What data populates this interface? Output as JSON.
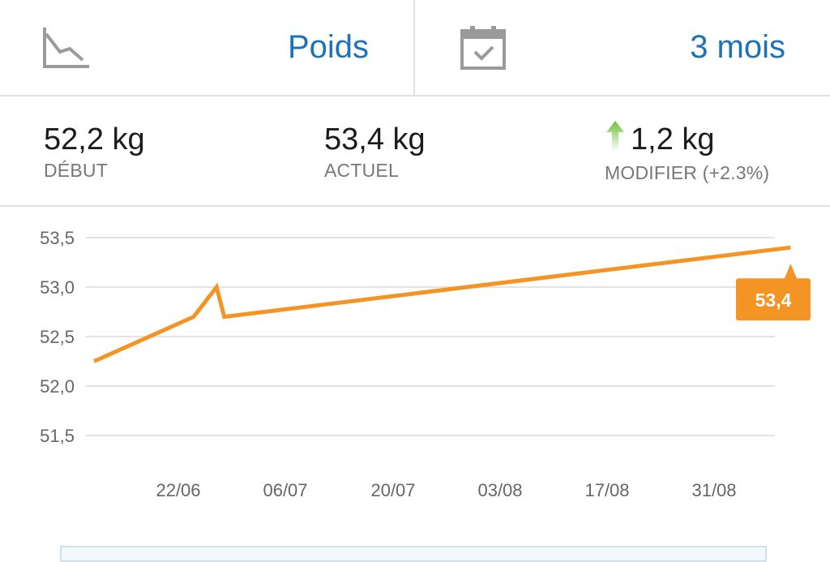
{
  "top_bar": {
    "metric_icon": "weight-trend-icon",
    "metric_label": "Poids",
    "period_icon": "calendar-check-icon",
    "period_label": "3 mois"
  },
  "stats": {
    "start": {
      "value": "52,2 kg",
      "label": "DÉBUT"
    },
    "current": {
      "value": "53,4 kg",
      "label": "ACTUEL"
    },
    "change": {
      "value": "1,2 kg",
      "label": "MODIFIER (+2.3%)",
      "direction_icon": "arrow-up-icon",
      "arrow_color": "#7ac142"
    }
  },
  "colors": {
    "accent": "#f39425",
    "link": "#1d72b8",
    "grid": "#e3e3e3",
    "tooltip_bg": "#f39425"
  },
  "chart_data": {
    "type": "line",
    "x_tick_labels": [
      "22/06",
      "06/07",
      "20/07",
      "03/08",
      "17/08",
      "31/08"
    ],
    "y_tick_labels": [
      "53,5",
      "53,0",
      "52,5",
      "52,0",
      "51,5"
    ],
    "ylim": [
      51.5,
      53.5
    ],
    "series": [
      {
        "points": [
          {
            "x": "2015-06-11",
            "y": 52.25
          },
          {
            "x": "2015-06-24",
            "y": 52.7
          },
          {
            "x": "2015-06-27",
            "y": 53.0
          },
          {
            "x": "2015-06-28",
            "y": 52.7
          },
          {
            "x": "2015-09-10",
            "y": 53.4
          }
        ]
      }
    ],
    "last_value_label": "53,4"
  }
}
